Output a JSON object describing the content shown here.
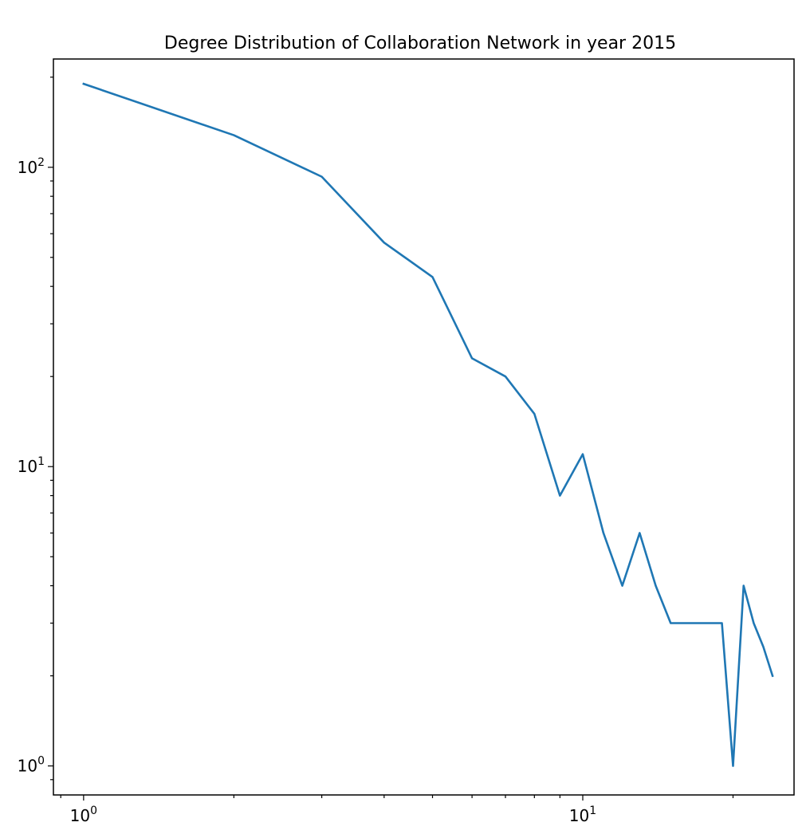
{
  "chart_data": {
    "type": "line",
    "title": "Degree Distribution of Collaboration Network in year 2015",
    "xlabel": "",
    "ylabel": "",
    "xscale": "log",
    "yscale": "log",
    "xlim": [
      0.87,
      26.5
    ],
    "ylim": [
      0.8,
      230
    ],
    "grid": false,
    "legend": "none",
    "line_color": "#1f77b4",
    "x_ticks": [
      {
        "base": "10",
        "exp": "0",
        "value": 1
      },
      {
        "base": "10",
        "exp": "1",
        "value": 10
      }
    ],
    "y_ticks": [
      {
        "base": "10",
        "exp": "0",
        "value": 1
      },
      {
        "base": "10",
        "exp": "1",
        "value": 10
      },
      {
        "base": "10",
        "exp": "2",
        "value": 100
      }
    ],
    "series": [
      {
        "x": [
          1,
          2,
          3,
          4,
          5,
          6,
          7,
          8,
          9,
          10,
          11,
          12,
          13,
          14,
          15,
          16,
          17,
          18,
          19,
          20,
          21,
          22,
          23,
          24
        ],
        "y": [
          190,
          128,
          93,
          56,
          43,
          23,
          20,
          15,
          8,
          11,
          6,
          4,
          6,
          4,
          3,
          3,
          3,
          3,
          3,
          1,
          4,
          3,
          2.5,
          2
        ]
      }
    ]
  }
}
